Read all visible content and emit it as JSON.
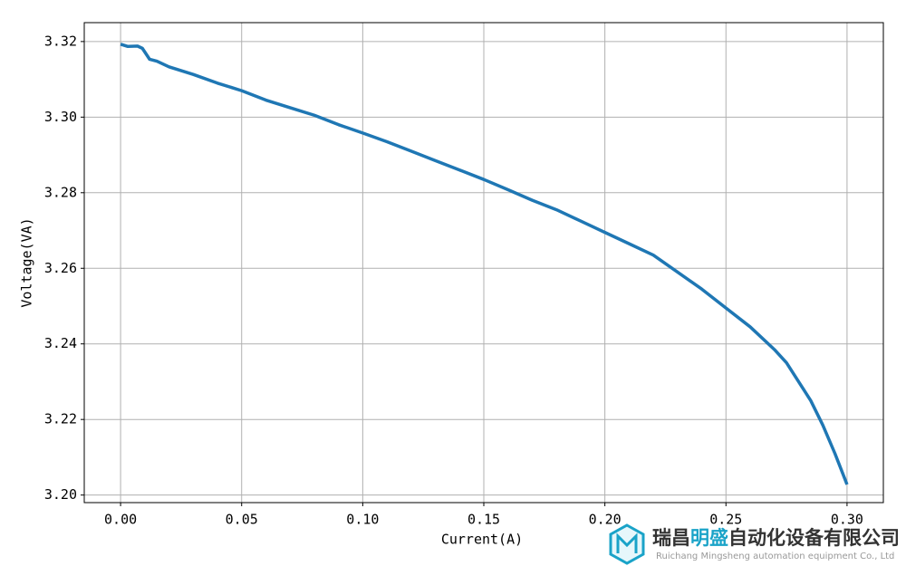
{
  "chart_data": {
    "type": "line",
    "x_label": "Current(A)",
    "y_label": "Voltage(VA)",
    "x": [
      0,
      0.003,
      0.007,
      0.009,
      0.012,
      0.015,
      0.02,
      0.03,
      0.04,
      0.05,
      0.06,
      0.07,
      0.08,
      0.09,
      0.1,
      0.11,
      0.12,
      0.13,
      0.14,
      0.15,
      0.16,
      0.17,
      0.18,
      0.19,
      0.2,
      0.21,
      0.22,
      0.23,
      0.24,
      0.25,
      0.26,
      0.27,
      0.275,
      0.28,
      0.285,
      0.29,
      0.295,
      0.3
    ],
    "values": [
      3.3193,
      3.3187,
      3.3188,
      3.3182,
      3.3153,
      3.3148,
      3.3133,
      3.3113,
      3.309,
      3.307,
      3.3045,
      3.3025,
      3.3005,
      3.298,
      3.2958,
      3.2935,
      3.291,
      3.2885,
      3.286,
      3.2835,
      3.2808,
      3.278,
      3.2755,
      3.2725,
      3.2695,
      3.2665,
      3.2635,
      3.259,
      3.2545,
      3.2495,
      3.2445,
      3.2385,
      3.235,
      3.23,
      3.225,
      3.2185,
      3.211,
      3.2028
    ],
    "color": "#1f77b4",
    "xlim": [
      -0.015,
      0.315
    ],
    "ylim": [
      3.198,
      3.325
    ],
    "xticks": [
      {
        "value": 0,
        "label": "0.00"
      },
      0.05,
      {
        "value": 0.1,
        "label": "0.10"
      },
      0.15,
      {
        "value": 0.2,
        "label": "0.20"
      },
      0.25,
      {
        "value": 0.3,
        "label": "0.30"
      }
    ],
    "yticks": [
      {
        "value": 3.2,
        "label": "3.20"
      },
      3.22,
      3.24,
      3.26,
      3.28,
      {
        "value": 3.3,
        "label": "3.30"
      },
      3.32
    ],
    "grid": true
  },
  "watermark": {
    "name_start": "瑞昌",
    "name_highlight": "明盛",
    "name_end": "自动化设备有限公司",
    "subtitle": "Ruichang Mingsheng automation equipment Co., Ltd"
  }
}
